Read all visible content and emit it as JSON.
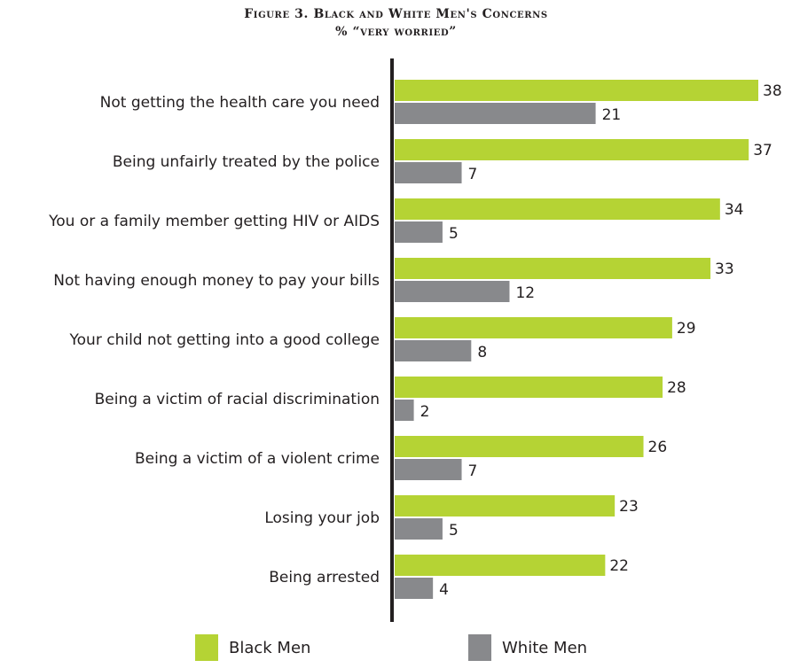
{
  "title": {
    "line1": "Figure 3. Black and White Men's Concerns",
    "line2": "% “very worried”"
  },
  "colors": {
    "black_men": "#b5d334",
    "white_men": "#88898c",
    "axis": "#231f20"
  },
  "legend": {
    "black_men": "Black Men",
    "white_men": "White Men"
  },
  "chart_data": {
    "type": "bar",
    "orientation": "horizontal",
    "title": "Figure 3. Black and White Men's Concerns",
    "subtitle": "% “very worried”",
    "xlabel": "",
    "ylabel": "",
    "xlim": [
      0,
      40
    ],
    "grid": false,
    "legend_position": "bottom",
    "categories": [
      "Not getting the health care you need",
      "Being unfairly treated by the police",
      "You or a family member getting HIV or AIDS",
      "Not having enough money to pay your bills",
      "Your child not getting into a good college",
      "Being a victim of racial discrimination",
      "Being a victim of a violent crime",
      "Losing your job",
      "Being arrested"
    ],
    "series": [
      {
        "name": "Black Men",
        "values": [
          38,
          37,
          34,
          33,
          29,
          28,
          26,
          23,
          22
        ]
      },
      {
        "name": "White Men",
        "values": [
          21,
          7,
          5,
          12,
          8,
          2,
          7,
          5,
          4
        ]
      }
    ]
  }
}
